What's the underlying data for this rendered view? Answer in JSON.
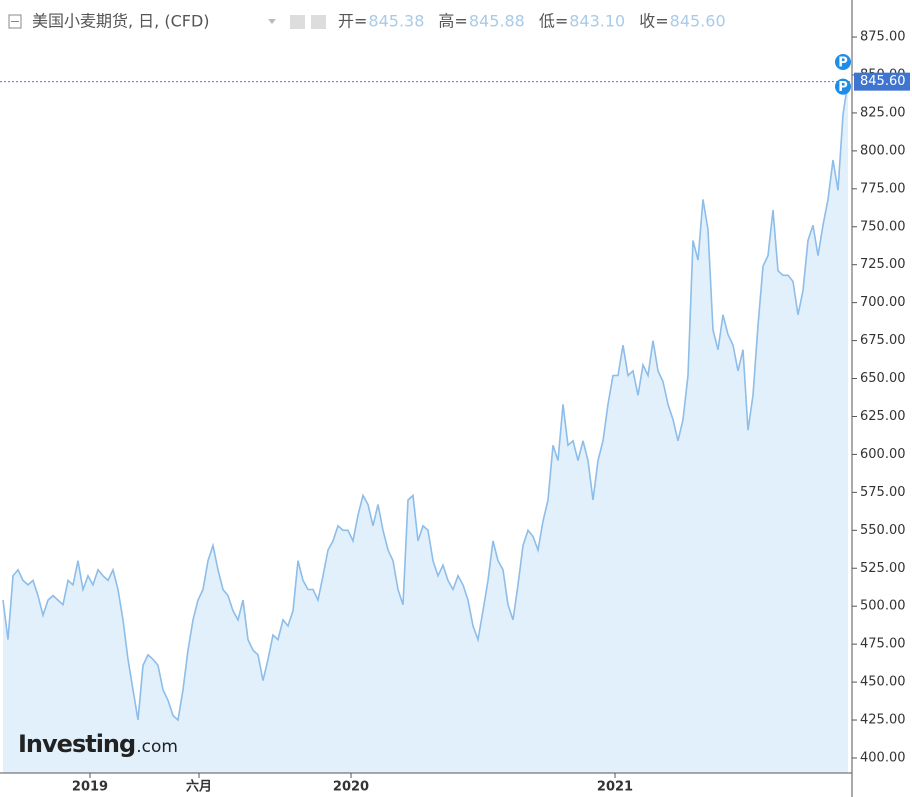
{
  "chart_data": {
    "type": "area",
    "title": "美国小麦期货, 日, (CFD)",
    "header": [
      {
        "label": "开=",
        "value": 845.38
      },
      {
        "label": "高=",
        "value": 845.88
      },
      {
        "label": "低=",
        "value": {
          "value": 843.1,
          "label": "843.10"
        }
      },
      {
        "label": "收=",
        "value": {
          "value": 845.6,
          "label": "845.60"
        }
      }
    ],
    "last_price": {
      "value": 845.6,
      "label": "845.60"
    },
    "markers": [
      "P",
      "P"
    ],
    "logo": [
      "Investing",
      ".com"
    ],
    "color": "#8dbde9",
    "fill": "#e2f0fb",
    "values": [
      504,
      478,
      520,
      524,
      517,
      514,
      517,
      507,
      494,
      504,
      507,
      504,
      501,
      517,
      514,
      530,
      511,
      520,
      514,
      524,
      520,
      517,
      524,
      511,
      491,
      465,
      445,
      425,
      461,
      468,
      465,
      461,
      445,
      438,
      428,
      425,
      445,
      471,
      491,
      504,
      511,
      530,
      540,
      524,
      511,
      507,
      497,
      491,
      504,
      478,
      471,
      468,
      451,
      465,
      481,
      478,
      491,
      487,
      497,
      530,
      517,
      511,
      511,
      504,
      520,
      537,
      543,
      553,
      550,
      550,
      543,
      560,
      573,
      567,
      553,
      567,
      550,
      537,
      530,
      511,
      501,
      570,
      573,
      543,
      553,
      550,
      530,
      520,
      527,
      517,
      511,
      520,
      514,
      504,
      487,
      478,
      497,
      517,
      543,
      530,
      524,
      501,
      491,
      514,
      540,
      550,
      546,
      537,
      556,
      570,
      606,
      596,
      633,
      606,
      609,
      596,
      609,
      596,
      570,
      596,
      609,
      633,
      652,
      652,
      672,
      652,
      655,
      639,
      659,
      652,
      675,
      655,
      648,
      633,
      623,
      609,
      623,
      652,
      741,
      728,
      768,
      748,
      682,
      669,
      692,
      679,
      672,
      655,
      669,
      616,
      639,
      685,
      724,
      731,
      761,
      721,
      718,
      718,
      714,
      692,
      708,
      741,
      751,
      731,
      751,
      768,
      794,
      774,
      824,
      845.6
    ],
    "xlim": [
      -0.6,
      169.8
    ],
    "xticks": [
      {
        "value": 17.4,
        "label": "2019"
      },
      {
        "value": 39.2,
        "label": "六月"
      },
      {
        "value": 69.6,
        "label": "2020"
      },
      {
        "value": 122.4,
        "label": "2021"
      }
    ],
    "ylim": [
      390.1,
      899.4
    ],
    "yticks": [
      {
        "value": 400,
        "label": "400.00"
      },
      {
        "value": 425,
        "label": "425.00"
      },
      {
        "value": 450,
        "label": "450.00"
      },
      {
        "value": 475,
        "label": "475.00"
      },
      {
        "value": 500,
        "label": "500.00"
      },
      {
        "value": 525,
        "label": "525.00"
      },
      {
        "value": 550,
        "label": "550.00"
      },
      {
        "value": 575,
        "label": "575.00"
      },
      {
        "value": 600,
        "label": "600.00"
      },
      {
        "value": 625,
        "label": "625.00"
      },
      {
        "value": 650,
        "label": "650.00"
      },
      {
        "value": 675,
        "label": "675.00"
      },
      {
        "value": 700,
        "label": "700.00"
      },
      {
        "value": 725,
        "label": "725.00"
      },
      {
        "value": 750,
        "label": "750.00"
      },
      {
        "value": 775,
        "label": "775.00"
      },
      {
        "value": 800,
        "label": "800.00"
      },
      {
        "value": 825,
        "label": "825.00"
      },
      {
        "value": 850,
        "label": "850.00"
      },
      {
        "value": 875,
        "label": "875.00"
      }
    ]
  }
}
